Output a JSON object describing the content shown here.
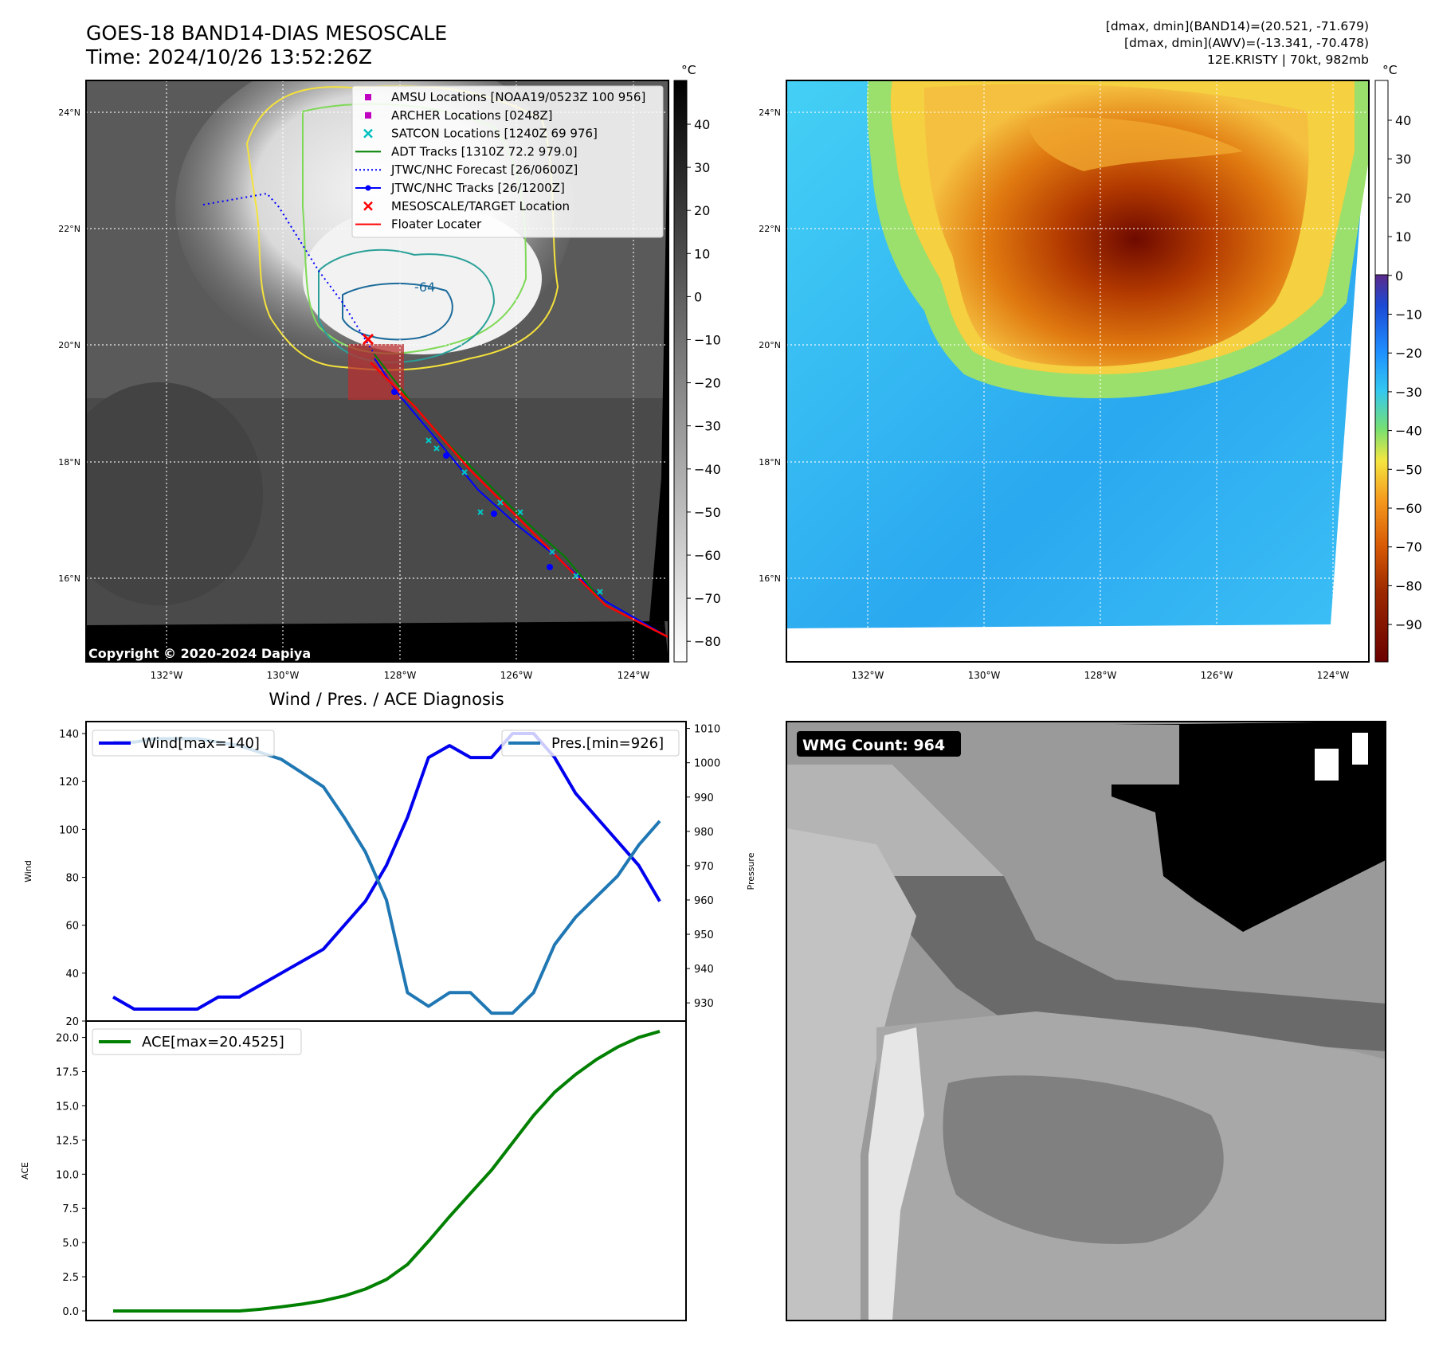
{
  "header": {
    "title_line1": "GOES-18 BAND14-DIAS MESOSCALE",
    "title_line2": "Time: 2024/10/26 13:52:26Z",
    "info_line1": "[dmax, dmin](BAND14)=(20.521, -71.679)",
    "info_line2": "[dmax, dmin](AWV)=(-13.341, -70.478)",
    "info_line3": "12E.KRISTY | 70kt, 982mb"
  },
  "copyright": "Copyright © 2020-2024 Dapiya",
  "units": {
    "celsius": "°C"
  },
  "map_axes": {
    "lat_labels": [
      "24°N",
      "22°N",
      "20°N",
      "18°N",
      "16°N"
    ],
    "lon_labels": [
      "132°W",
      "130°W",
      "128°W",
      "126°W",
      "124°W"
    ]
  },
  "ir_colorbar": {
    "ticks": [
      "40",
      "30",
      "20",
      "10",
      "0",
      "−10",
      "−20",
      "−30",
      "−40",
      "−50",
      "−60",
      "−70",
      "−80"
    ]
  },
  "enh_colorbar": {
    "ticks": [
      "40",
      "30",
      "20",
      "10",
      "0",
      "−10",
      "−20",
      "−30",
      "−40",
      "−50",
      "−60",
      "−70",
      "−80",
      "−90"
    ]
  },
  "contour_label": "-64",
  "map_legend": {
    "items": [
      {
        "label": "AMSU Locations [NOAA19/0523Z 100 956]",
        "color": "#c000c0",
        "marker": "square"
      },
      {
        "label": "ARCHER Locations [0248Z]",
        "color": "#c000c0",
        "marker": "square"
      },
      {
        "label": "SATCON Locations [1240Z 69 976]",
        "color": "#00c0c0",
        "marker": "x"
      },
      {
        "label": "ADT Tracks [1310Z 72.2 979.0]",
        "color": "#008000",
        "marker": "line"
      },
      {
        "label": "JTWC/NHC Forecast [26/0600Z]",
        "color": "#0000ff",
        "marker": "dotted"
      },
      {
        "label": "JTWC/NHC Tracks [26/1200Z]",
        "color": "#0000ff",
        "marker": "line-dot"
      },
      {
        "label": "MESOSCALE/TARGET Location",
        "color": "#ff0000",
        "marker": "x"
      },
      {
        "label": "Floater Locater",
        "color": "#ff0000",
        "marker": "line"
      }
    ]
  },
  "wmg_label": "WMG Count: 964",
  "chart_data": [
    {
      "type": "line",
      "title": "Wind / Pres. / ACE Diagnosis",
      "ylabel": "Wind",
      "y2label": "Pressure",
      "ylim": [
        20,
        145
      ],
      "y2lim": [
        924.7,
        1012
      ],
      "yticks": [
        "20",
        "40",
        "60",
        "80",
        "100",
        "120",
        "140"
      ],
      "y2ticks": [
        "930",
        "940",
        "950",
        "960",
        "970",
        "980",
        "990",
        "1000",
        "1010"
      ],
      "series": [
        {
          "name": "Wind[max=140]",
          "color": "#0000ee",
          "values": [
            30,
            25,
            25,
            25,
            25,
            30,
            30,
            35,
            40,
            45,
            50,
            60,
            70,
            85,
            105,
            130,
            135,
            130,
            130,
            140,
            140,
            130,
            115,
            105,
            95,
            85,
            70
          ]
        },
        {
          "name": "Pres.[min=926]",
          "color": "#1f77b4",
          "values": [
            1006,
            1006,
            1007,
            1007,
            1007,
            1006,
            1005,
            1003,
            1001,
            997,
            993,
            984,
            974,
            960,
            933,
            929,
            933,
            933,
            927,
            927,
            933,
            947,
            955,
            961,
            967,
            976,
            983
          ]
        }
      ]
    },
    {
      "type": "line",
      "ylabel": "ACE",
      "ylim": [
        -0.7,
        21.2
      ],
      "yticks": [
        "0.0",
        "2.5",
        "5.0",
        "7.5",
        "10.0",
        "12.5",
        "15.0",
        "17.5",
        "20.0"
      ],
      "series": [
        {
          "name": "ACE[max=20.4525]",
          "color": "#008000",
          "values": [
            0,
            0,
            0,
            0,
            0,
            0,
            0,
            0.12,
            0.3,
            0.5,
            0.75,
            1.1,
            1.6,
            2.3,
            3.4,
            5.1,
            6.9,
            8.6,
            10.3,
            12.3,
            14.3,
            16,
            17.3,
            18.4,
            19.3,
            20,
            20.45
          ]
        }
      ]
    }
  ]
}
